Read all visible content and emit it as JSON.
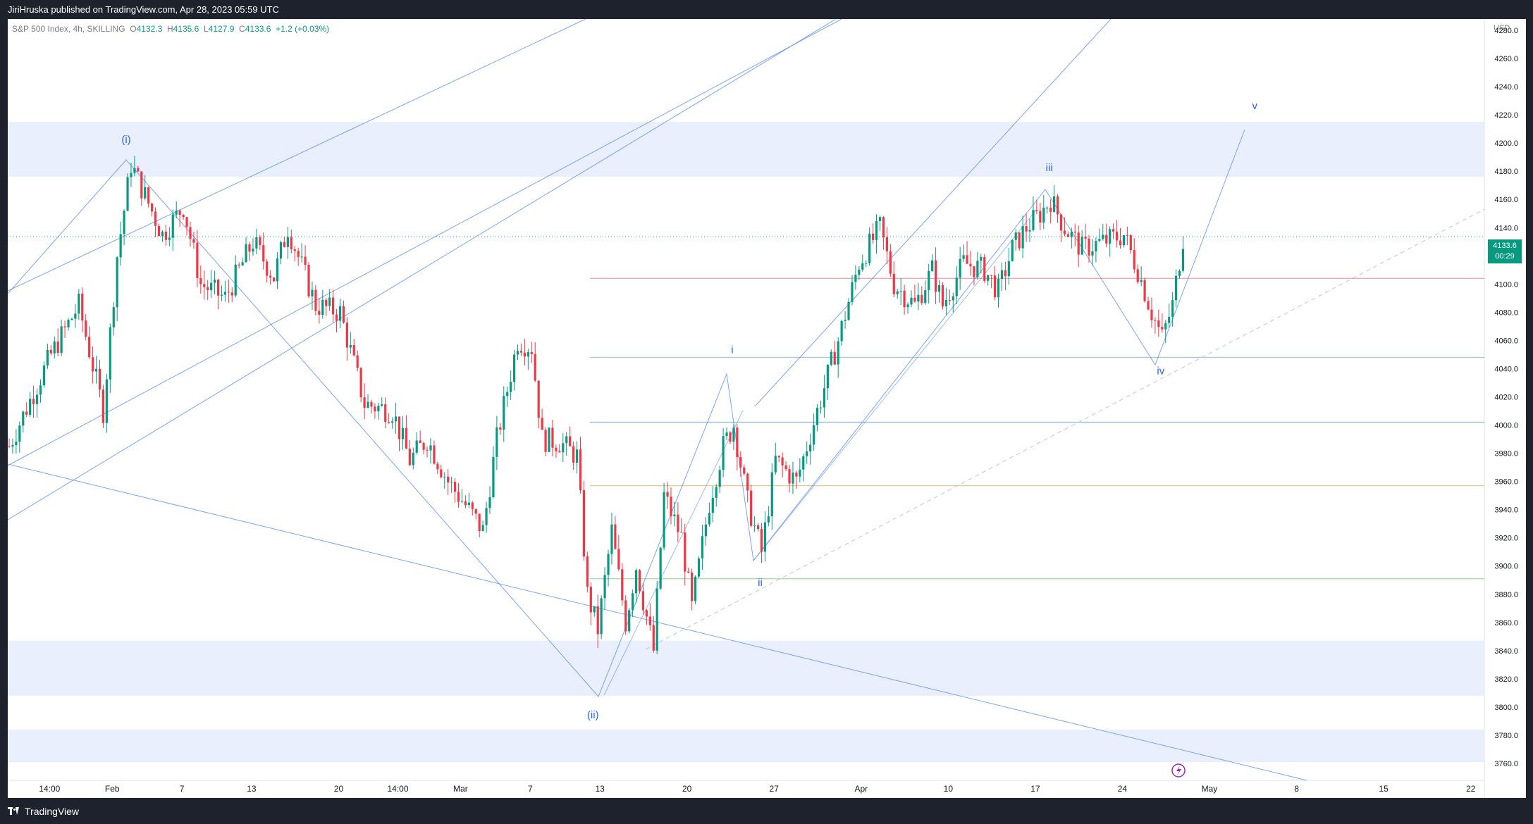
{
  "header": {
    "published": "JiriHruska published on TradingView.com, Apr 28, 2023 05:59 UTC"
  },
  "legend": {
    "symbol": "S&P 500 Index, 4h, SKILLING",
    "open_key": "O",
    "open": "4132.3",
    "high_key": "H",
    "high": "4135.6",
    "low_key": "L",
    "low": "4127.9",
    "close_key": "C",
    "close": "4133.6",
    "change": "+1.2 (+0.03%)"
  },
  "price_axis": {
    "currency": "USD",
    "current_price": "4133.6",
    "countdown": "00:29"
  },
  "footer": {
    "brand": "TradingView"
  },
  "colors": {
    "up": "#089981",
    "down": "#f23645",
    "drawing": "#5b8def",
    "zone": "#e3ebfb"
  },
  "chart_data": {
    "type": "candlestick",
    "title": "",
    "ylim": [
      3748,
      4290
    ],
    "y_ticks": [
      3760,
      3780,
      3800,
      3820,
      3840,
      3860,
      3880,
      3900,
      3920,
      3940,
      3960,
      3980,
      4000,
      4020,
      4040,
      4060,
      4080,
      4100,
      4120,
      4140,
      4160,
      4180,
      4200,
      4220,
      4240,
      4260,
      4280
    ],
    "x_ticks": [
      {
        "label": "14:00",
        "i": 12
      },
      {
        "label": "Feb",
        "i": 30
      },
      {
        "label": "7",
        "i": 50
      },
      {
        "label": "13",
        "i": 70
      },
      {
        "label": "20",
        "i": 95
      },
      {
        "label": "14:00",
        "i": 112
      },
      {
        "label": "Mar",
        "i": 130
      },
      {
        "label": "7",
        "i": 150
      },
      {
        "label": "13",
        "i": 170
      },
      {
        "label": "20",
        "i": 195
      },
      {
        "label": "27",
        "i": 220
      },
      {
        "label": "Apr",
        "i": 245
      },
      {
        "label": "10",
        "i": 270
      },
      {
        "label": "17",
        "i": 295
      },
      {
        "label": "24",
        "i": 320
      },
      {
        "label": "May",
        "i": 345
      },
      {
        "label": "8",
        "i": 370
      },
      {
        "label": "15",
        "i": 395
      },
      {
        "label": "22",
        "i": 420
      }
    ],
    "wave_labels": [
      {
        "label": "(i)",
        "i": 34,
        "price": 4200
      },
      {
        "label": "(ii)",
        "i": 168,
        "price": 3792
      },
      {
        "label": "i",
        "i": 208,
        "price": 4051
      },
      {
        "label": "ii",
        "i": 216,
        "price": 3886
      },
      {
        "label": "iii",
        "i": 299,
        "price": 4180
      },
      {
        "label": "iv",
        "i": 331,
        "price": 4036
      },
      {
        "label": "v",
        "i": 358,
        "price": 4224
      }
    ],
    "horizontal_levels": [
      {
        "price": 4104,
        "color": "#f7a1a8"
      },
      {
        "price": 4048,
        "color": "#9fc3e8"
      },
      {
        "price": 4002,
        "color": "#8fb3e8"
      },
      {
        "price": 3957,
        "color": "#f6c48f"
      },
      {
        "price": 3891,
        "color": "#a5d6a7"
      }
    ],
    "zones": [
      {
        "from": 4176,
        "to": 4215
      },
      {
        "from": 3808,
        "to": 3847
      },
      {
        "from": 3761,
        "to": 3784
      }
    ],
    "waypoints": [
      [
        0,
        3985
      ],
      [
        12,
        4050
      ],
      [
        20,
        4085
      ],
      [
        27,
        4010
      ],
      [
        31,
        4120
      ],
      [
        35,
        4185
      ],
      [
        44,
        4135
      ],
      [
        50,
        4155
      ],
      [
        55,
        4100
      ],
      [
        62,
        4090
      ],
      [
        70,
        4130
      ],
      [
        76,
        4105
      ],
      [
        80,
        4140
      ],
      [
        88,
        4085
      ],
      [
        95,
        4080
      ],
      [
        102,
        4015
      ],
      [
        110,
        4010
      ],
      [
        115,
        3975
      ],
      [
        120,
        3990
      ],
      [
        126,
        3960
      ],
      [
        132,
        3940
      ],
      [
        136,
        3925
      ],
      [
        140,
        3990
      ],
      [
        146,
        4060
      ],
      [
        150,
        4055
      ],
      [
        153,
        3990
      ],
      [
        158,
        3988
      ],
      [
        163,
        3978
      ],
      [
        166,
        3880
      ],
      [
        169,
        3855
      ],
      [
        173,
        3925
      ],
      [
        177,
        3860
      ],
      [
        180,
        3900
      ],
      [
        185,
        3840
      ],
      [
        188,
        3950
      ],
      [
        193,
        3920
      ],
      [
        196,
        3870
      ],
      [
        201,
        3945
      ],
      [
        205,
        3985
      ],
      [
        208,
        4000
      ],
      [
        212,
        3945
      ],
      [
        216,
        3910
      ],
      [
        220,
        3975
      ],
      [
        226,
        3960
      ],
      [
        232,
        4010
      ],
      [
        238,
        4060
      ],
      [
        244,
        4115
      ],
      [
        250,
        4140
      ],
      [
        254,
        4100
      ],
      [
        260,
        4085
      ],
      [
        265,
        4110
      ],
      [
        268,
        4085
      ],
      [
        274,
        4115
      ],
      [
        280,
        4110
      ],
      [
        284,
        4095
      ],
      [
        288,
        4125
      ],
      [
        292,
        4140
      ],
      [
        296,
        4150
      ],
      [
        299,
        4160
      ],
      [
        303,
        4140
      ],
      [
        308,
        4125
      ],
      [
        314,
        4130
      ],
      [
        320,
        4135
      ],
      [
        324,
        4110
      ],
      [
        328,
        4080
      ],
      [
        331,
        4062
      ],
      [
        334,
        4085
      ],
      [
        337,
        4133
      ]
    ]
  }
}
